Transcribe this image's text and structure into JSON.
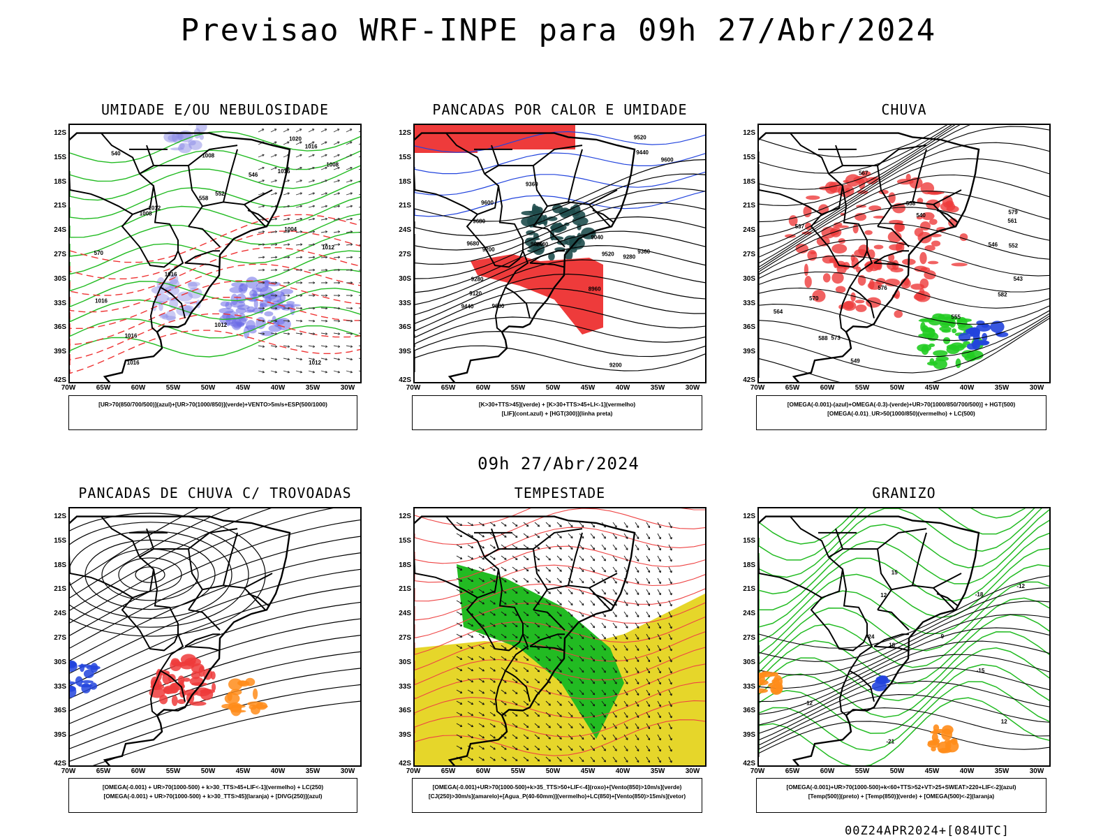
{
  "header": {
    "title": "Previsao WRF-INPE  para 09h 27/Abr/2024",
    "mid_time": "09h 27/Abr/2024",
    "run_info": "00Z24APR2024+[084UTC]"
  },
  "axes": {
    "lat": [
      "12S",
      "15S",
      "18S",
      "21S",
      "24S",
      "27S",
      "30S",
      "33S",
      "36S",
      "39S",
      "42S"
    ],
    "lon": [
      "70W",
      "65W",
      "60W",
      "55W",
      "50W",
      "45W",
      "40W",
      "35W",
      "30W"
    ]
  },
  "panels": [
    {
      "title": "UMIDADE E/OU NEBULOSIDADE",
      "legend": [
        "[UR>70(850/700/500)](azul)+[UR>70(1000/850)](verde)+VENTO>5m/s+ESP(500/1000)"
      ],
      "contour_labels": [
        "1016",
        "1012",
        "1016",
        "1016",
        "1012",
        "1020",
        "1016",
        "1008",
        "1012",
        "1008",
        "1016",
        "1012",
        "1016",
        "1008",
        "1004",
        "570",
        "558",
        "552",
        "546",
        "540"
      ]
    },
    {
      "title": "PANCADAS POR CALOR E UMIDADE",
      "legend": [
        "[K>30+TTS>45](verde) + [K>30+TTS>45+LI<-1](vermelho)",
        "[LIF](cont.azul) + [HGT(300)](linha preta)"
      ],
      "contour_labels": [
        "9680",
        "9680",
        "9680",
        "9680",
        "9600",
        "9520",
        "9440",
        "9600",
        "9440",
        "9360",
        "9280",
        "9200",
        "9120",
        "9040",
        "8960",
        "9520",
        "9440",
        "9360",
        "9280",
        "9200"
      ]
    },
    {
      "title": "CHUVA",
      "legend": [
        "[OMEGA(-0.001)-(azul)+OMEGA(-0.3)-(verde)+UR>70(1000/850/700/500)] + HGT(500)",
        "[OMEGA(-0.01)_UR>50(1000/850)(vermelho) + LC(500)"
      ],
      "contour_labels": [
        "588",
        "582",
        "579",
        "576",
        "573",
        "570",
        "567",
        "564",
        "561",
        "558",
        "555",
        "552",
        "549",
        "546",
        "543",
        "540",
        "537"
      ]
    },
    {
      "title": "PANCADAS DE CHUVA C/ TROVOADAS",
      "legend": [
        "[OMEGA(-0.001) + UR>70(1000-500) + k>30_TTS>45+LIF<-1](vermelho) + LC(250)",
        "[OMEGA(-0.001) + UR>70(1000-500) + k>30_TTS>45](laranja) + [DIVG(250)](azul)"
      ],
      "contour_labels": []
    },
    {
      "title": "TEMPESTADE",
      "legend": [
        "[OMEGA(-0.001)+UR>70(1000-500)+k>35_TTS>50+LIF<-4](roxo)+[Vento(850)>10m/s](verde)",
        "[CJ(250)>30m/s](amarelo)+[Agua_P(40-60mm)](vermelho)+LC(850)+[Vento(850)>15m/s](vetor)"
      ],
      "contour_labels": []
    },
    {
      "title": "GRANIZO",
      "legend": [
        "[OMEGA(-0.001)+UR>70(1000-500)+k<60+TTS>52+VT>25+SWEAT>220+LIF<-2](azul)",
        "[Temp(500)](preto) + [Temp(850)](verde) + [OMEGA(500)<-2](laranja)"
      ],
      "contour_labels": [
        "-12",
        "-12",
        "-15",
        "-18",
        "-21",
        "-24",
        "12",
        "15",
        "18",
        "9",
        "12"
      ]
    }
  ]
}
